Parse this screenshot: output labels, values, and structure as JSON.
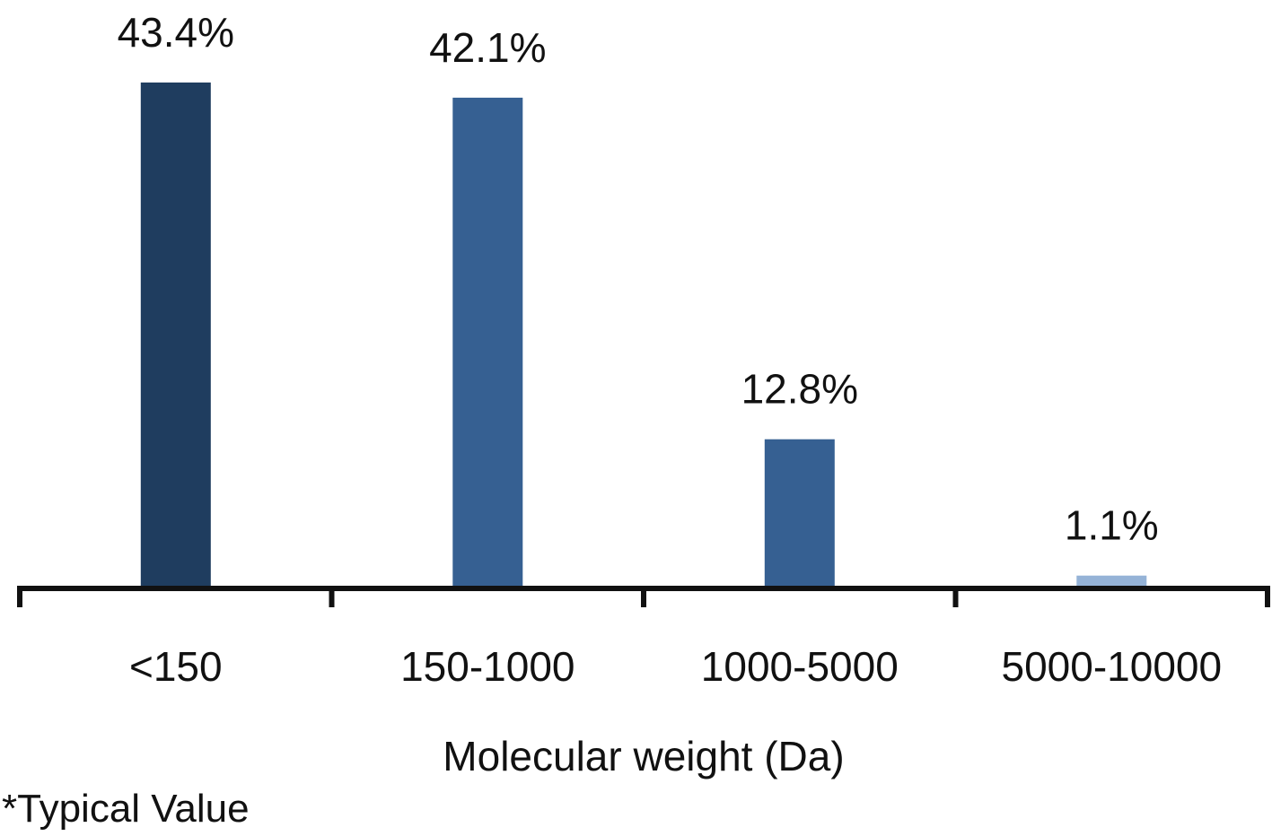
{
  "chart_data": {
    "type": "bar",
    "categories": [
      "<150",
      "150-1000",
      "1000-5000",
      "5000-10000"
    ],
    "values": [
      43.4,
      42.1,
      12.8,
      1.1
    ],
    "data_labels": [
      "43.4%",
      "42.1%",
      "12.8%",
      "1.1%"
    ],
    "bar_colors": [
      "#1f3d5f",
      "#366092",
      "#366092",
      "#95b3d7"
    ],
    "xlabel": "Molecular weight (Da)",
    "ylabel": "",
    "ylim": [
      0,
      43.4
    ],
    "grid": false,
    "legend": "none"
  },
  "footnote": "*Typical Value"
}
